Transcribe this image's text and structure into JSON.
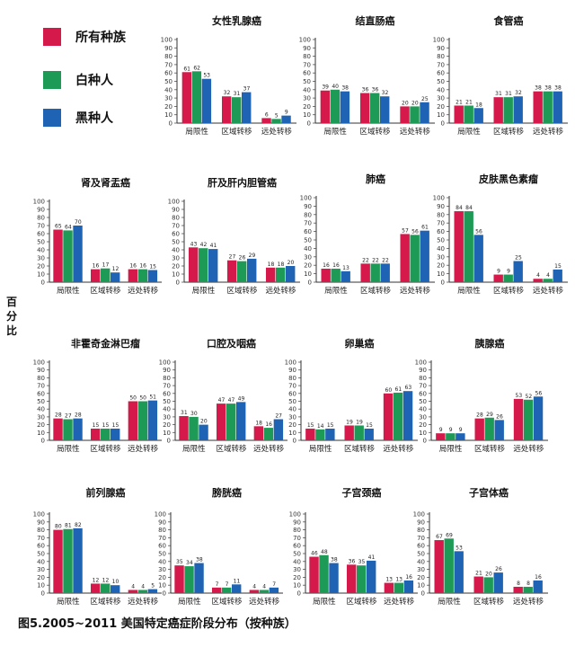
{
  "legend": [
    {
      "label": "所有种族",
      "color": "#d5194a"
    },
    {
      "label": "白种人",
      "color": "#1d9a55"
    },
    {
      "label": "黑种人",
      "color": "#1f63b4"
    }
  ],
  "ylabel": "百分比",
  "caption": "图5.2005~2011 美国特定癌症阶段分布（按种族）",
  "chart_data": [
    {
      "type": "bar",
      "title": "女性乳腺癌",
      "categories": [
        "局限性",
        "区域转移",
        "远处转移"
      ],
      "ylim": [
        0,
        100
      ],
      "yticks": [
        0,
        10,
        20,
        30,
        40,
        50,
        60,
        70,
        80,
        90,
        100
      ],
      "series": [
        {
          "name": "所有种族",
          "values": [
            61,
            32,
            6
          ]
        },
        {
          "name": "白种人",
          "values": [
            62,
            31,
            5
          ]
        },
        {
          "name": "黑种人",
          "values": [
            53,
            37,
            9
          ]
        }
      ]
    },
    {
      "type": "bar",
      "title": "结直肠癌",
      "categories": [
        "局限性",
        "区域转移",
        "远处转移"
      ],
      "ylim": [
        0,
        100
      ],
      "yticks": [
        0,
        10,
        20,
        30,
        40,
        50,
        60,
        70,
        80,
        90,
        100
      ],
      "series": [
        {
          "name": "所有种族",
          "values": [
            39,
            36,
            20
          ]
        },
        {
          "name": "白种人",
          "values": [
            40,
            36,
            20
          ]
        },
        {
          "name": "黑种人",
          "values": [
            38,
            32,
            25
          ]
        }
      ]
    },
    {
      "type": "bar",
      "title": "食管癌",
      "categories": [
        "局限性",
        "区域转移",
        "远处转移"
      ],
      "ylim": [
        0,
        100
      ],
      "yticks": [
        0,
        10,
        20,
        30,
        40,
        50,
        60,
        70,
        80,
        90,
        100
      ],
      "series": [
        {
          "name": "所有种族",
          "values": [
            21,
            31,
            38
          ]
        },
        {
          "name": "白种人",
          "values": [
            21,
            31,
            38
          ]
        },
        {
          "name": "黑种人",
          "values": [
            18,
            32,
            38
          ]
        }
      ]
    },
    {
      "type": "bar",
      "title": "肾及肾盂癌",
      "categories": [
        "局限性",
        "区域转移",
        "远处转移"
      ],
      "ylim": [
        0,
        100
      ],
      "yticks": [
        0,
        10,
        20,
        30,
        40,
        50,
        60,
        70,
        80,
        90,
        100
      ],
      "series": [
        {
          "name": "所有种族",
          "values": [
            65,
            16,
            16
          ]
        },
        {
          "name": "白种人",
          "values": [
            64,
            17,
            16
          ]
        },
        {
          "name": "黑种人",
          "values": [
            70,
            12,
            15
          ]
        }
      ]
    },
    {
      "type": "bar",
      "title": "肝及肝内胆管癌",
      "categories": [
        "局限性",
        "区域转移",
        "远处转移"
      ],
      "ylim": [
        0,
        100
      ],
      "yticks": [
        0,
        10,
        20,
        30,
        40,
        50,
        60,
        70,
        80,
        90,
        100
      ],
      "series": [
        {
          "name": "所有种族",
          "values": [
            43,
            27,
            18
          ]
        },
        {
          "name": "白种人",
          "values": [
            42,
            26,
            18
          ]
        },
        {
          "name": "黑种人",
          "values": [
            41,
            29,
            20
          ]
        }
      ]
    },
    {
      "type": "bar",
      "title": "肺癌",
      "categories": [
        "局限性",
        "区域转移",
        "远处转移"
      ],
      "ylim": [
        0,
        100
      ],
      "yticks": [
        0,
        10,
        20,
        30,
        40,
        50,
        60,
        70,
        80,
        90,
        100
      ],
      "series": [
        {
          "name": "所有种族",
          "values": [
            16,
            22,
            57
          ]
        },
        {
          "name": "白种人",
          "values": [
            16,
            22,
            56
          ]
        },
        {
          "name": "黑种人",
          "values": [
            13,
            22,
            61
          ]
        }
      ]
    },
    {
      "type": "bar",
      "title": "皮肤黑色素瘤",
      "categories": [
        "局限性",
        "区域转移",
        "远处转移"
      ],
      "ylim": [
        0,
        100
      ],
      "yticks": [
        0,
        10,
        20,
        30,
        40,
        50,
        60,
        70,
        80,
        90,
        100
      ],
      "series": [
        {
          "name": "所有种族",
          "values": [
            84,
            9,
            4
          ]
        },
        {
          "name": "白种人",
          "values": [
            84,
            9,
            4
          ]
        },
        {
          "name": "黑种人",
          "values": [
            56,
            25,
            15
          ]
        }
      ]
    },
    {
      "type": "bar",
      "title": "非霍奇金淋巴瘤",
      "categories": [
        "局限性",
        "区域转移",
        "远处转移"
      ],
      "ylim": [
        0,
        100
      ],
      "yticks": [
        0,
        10,
        20,
        30,
        40,
        50,
        60,
        70,
        80,
        90,
        100
      ],
      "series": [
        {
          "name": "所有种族",
          "values": [
            28,
            15,
            50
          ]
        },
        {
          "name": "白种人",
          "values": [
            27,
            15,
            50
          ]
        },
        {
          "name": "黑种人",
          "values": [
            28,
            15,
            51
          ]
        }
      ]
    },
    {
      "type": "bar",
      "title": "口腔及咽癌",
      "categories": [
        "局限性",
        "区域转移",
        "远处转移"
      ],
      "ylim": [
        0,
        100
      ],
      "yticks": [
        0,
        10,
        20,
        30,
        40,
        50,
        60,
        70,
        80,
        90,
        100
      ],
      "series": [
        {
          "name": "所有种族",
          "values": [
            31,
            47,
            18
          ]
        },
        {
          "name": "白种人",
          "values": [
            30,
            47,
            16
          ]
        },
        {
          "name": "黑种人",
          "values": [
            20,
            49,
            27
          ]
        }
      ]
    },
    {
      "type": "bar",
      "title": "卵巢癌",
      "categories": [
        "局限性",
        "区域转移",
        "远处转移"
      ],
      "ylim": [
        0,
        100
      ],
      "yticks": [
        0,
        10,
        20,
        30,
        40,
        50,
        60,
        70,
        80,
        90,
        100
      ],
      "series": [
        {
          "name": "所有种族",
          "values": [
            15,
            19,
            60
          ]
        },
        {
          "name": "白种人",
          "values": [
            14,
            19,
            61
          ]
        },
        {
          "name": "黑种人",
          "values": [
            15,
            15,
            63
          ]
        }
      ]
    },
    {
      "type": "bar",
      "title": "胰腺癌",
      "categories": [
        "局限性",
        "区域转移",
        "远处转移"
      ],
      "ylim": [
        0,
        100
      ],
      "yticks": [
        0,
        10,
        20,
        30,
        40,
        50,
        60,
        70,
        80,
        90,
        100
      ],
      "series": [
        {
          "name": "所有种族",
          "values": [
            9,
            28,
            53
          ]
        },
        {
          "name": "白种人",
          "values": [
            9,
            29,
            52
          ]
        },
        {
          "name": "黑种人",
          "values": [
            9,
            26,
            56
          ]
        }
      ]
    },
    {
      "type": "bar",
      "title": "前列腺癌",
      "categories": [
        "局限性",
        "区域转移",
        "远处转移"
      ],
      "ylim": [
        0,
        100
      ],
      "yticks": [
        0,
        10,
        20,
        30,
        40,
        50,
        60,
        70,
        80,
        90,
        100
      ],
      "series": [
        {
          "name": "所有种族",
          "values": [
            80,
            12,
            4
          ]
        },
        {
          "name": "白种人",
          "values": [
            81,
            12,
            4
          ]
        },
        {
          "name": "黑种人",
          "values": [
            82,
            10,
            5
          ]
        }
      ]
    },
    {
      "type": "bar",
      "title": "膀胱癌",
      "categories": [
        "局限性",
        "区域转移",
        "远处转移"
      ],
      "ylim": [
        0,
        100
      ],
      "yticks": [
        0,
        10,
        20,
        30,
        40,
        50,
        60,
        70,
        80,
        90,
        100
      ],
      "series": [
        {
          "name": "所有种族",
          "values": [
            35,
            7,
            4
          ]
        },
        {
          "name": "白种人",
          "values": [
            34,
            7,
            4
          ]
        },
        {
          "name": "黑种人",
          "values": [
            38,
            11,
            7
          ]
        }
      ]
    },
    {
      "type": "bar",
      "title": "子宫颈癌",
      "categories": [
        "局限性",
        "区域转移",
        "远处转移"
      ],
      "ylim": [
        0,
        100
      ],
      "yticks": [
        0,
        10,
        20,
        30,
        40,
        50,
        60,
        70,
        80,
        90,
        100
      ],
      "series": [
        {
          "name": "所有种族",
          "values": [
            46,
            36,
            13
          ]
        },
        {
          "name": "白种人",
          "values": [
            48,
            35,
            13
          ]
        },
        {
          "name": "黑种人",
          "values": [
            38,
            41,
            16
          ]
        }
      ]
    },
    {
      "type": "bar",
      "title": "子宫体癌",
      "categories": [
        "局限性",
        "区域转移",
        "远处转移"
      ],
      "ylim": [
        0,
        100
      ],
      "yticks": [
        0,
        10,
        20,
        30,
        40,
        50,
        60,
        70,
        80,
        90,
        100
      ],
      "series": [
        {
          "name": "所有种族",
          "values": [
            67,
            21,
            8
          ]
        },
        {
          "name": "白种人",
          "values": [
            69,
            20,
            8
          ]
        },
        {
          "name": "黑种人",
          "values": [
            53,
            26,
            16
          ]
        }
      ]
    }
  ]
}
